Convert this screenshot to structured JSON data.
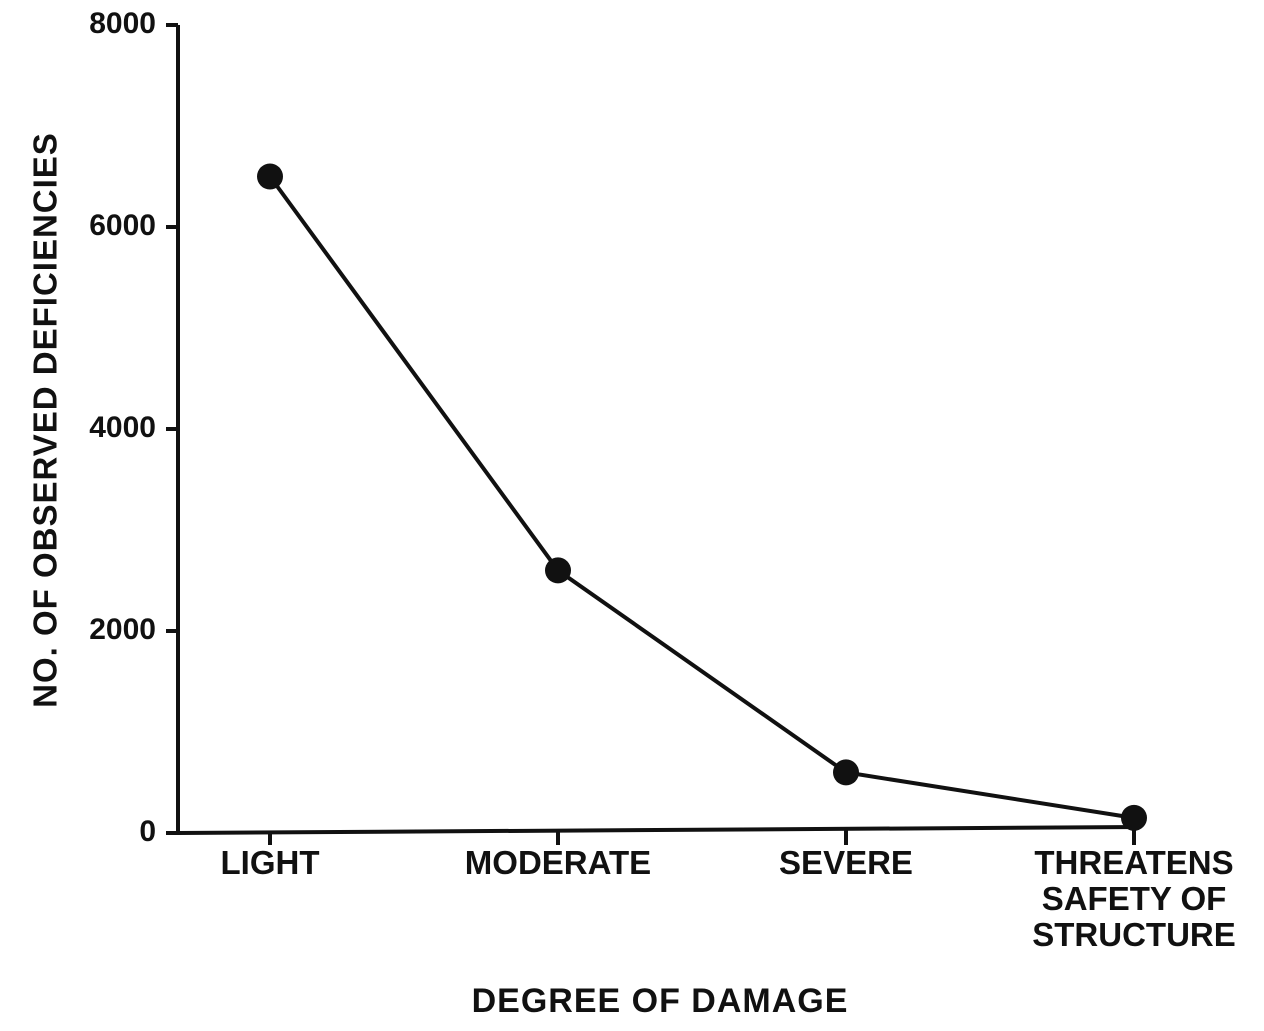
{
  "chart_data": {
    "type": "line",
    "xlabel": "DEGREE OF DAMAGE",
    "ylabel": "NO. OF OBSERVED DEFICIENCIES",
    "categories": [
      "LIGHT",
      "MODERATE",
      "SEVERE",
      "THREATENS\nSAFETY OF\nSTRUCTURE"
    ],
    "values": [
      6500,
      2600,
      600,
      150
    ],
    "color": "#111111",
    "ylim": [
      0,
      8000
    ],
    "yticks": [
      0,
      2000,
      4000,
      6000,
      8000
    ],
    "grid": false
  }
}
